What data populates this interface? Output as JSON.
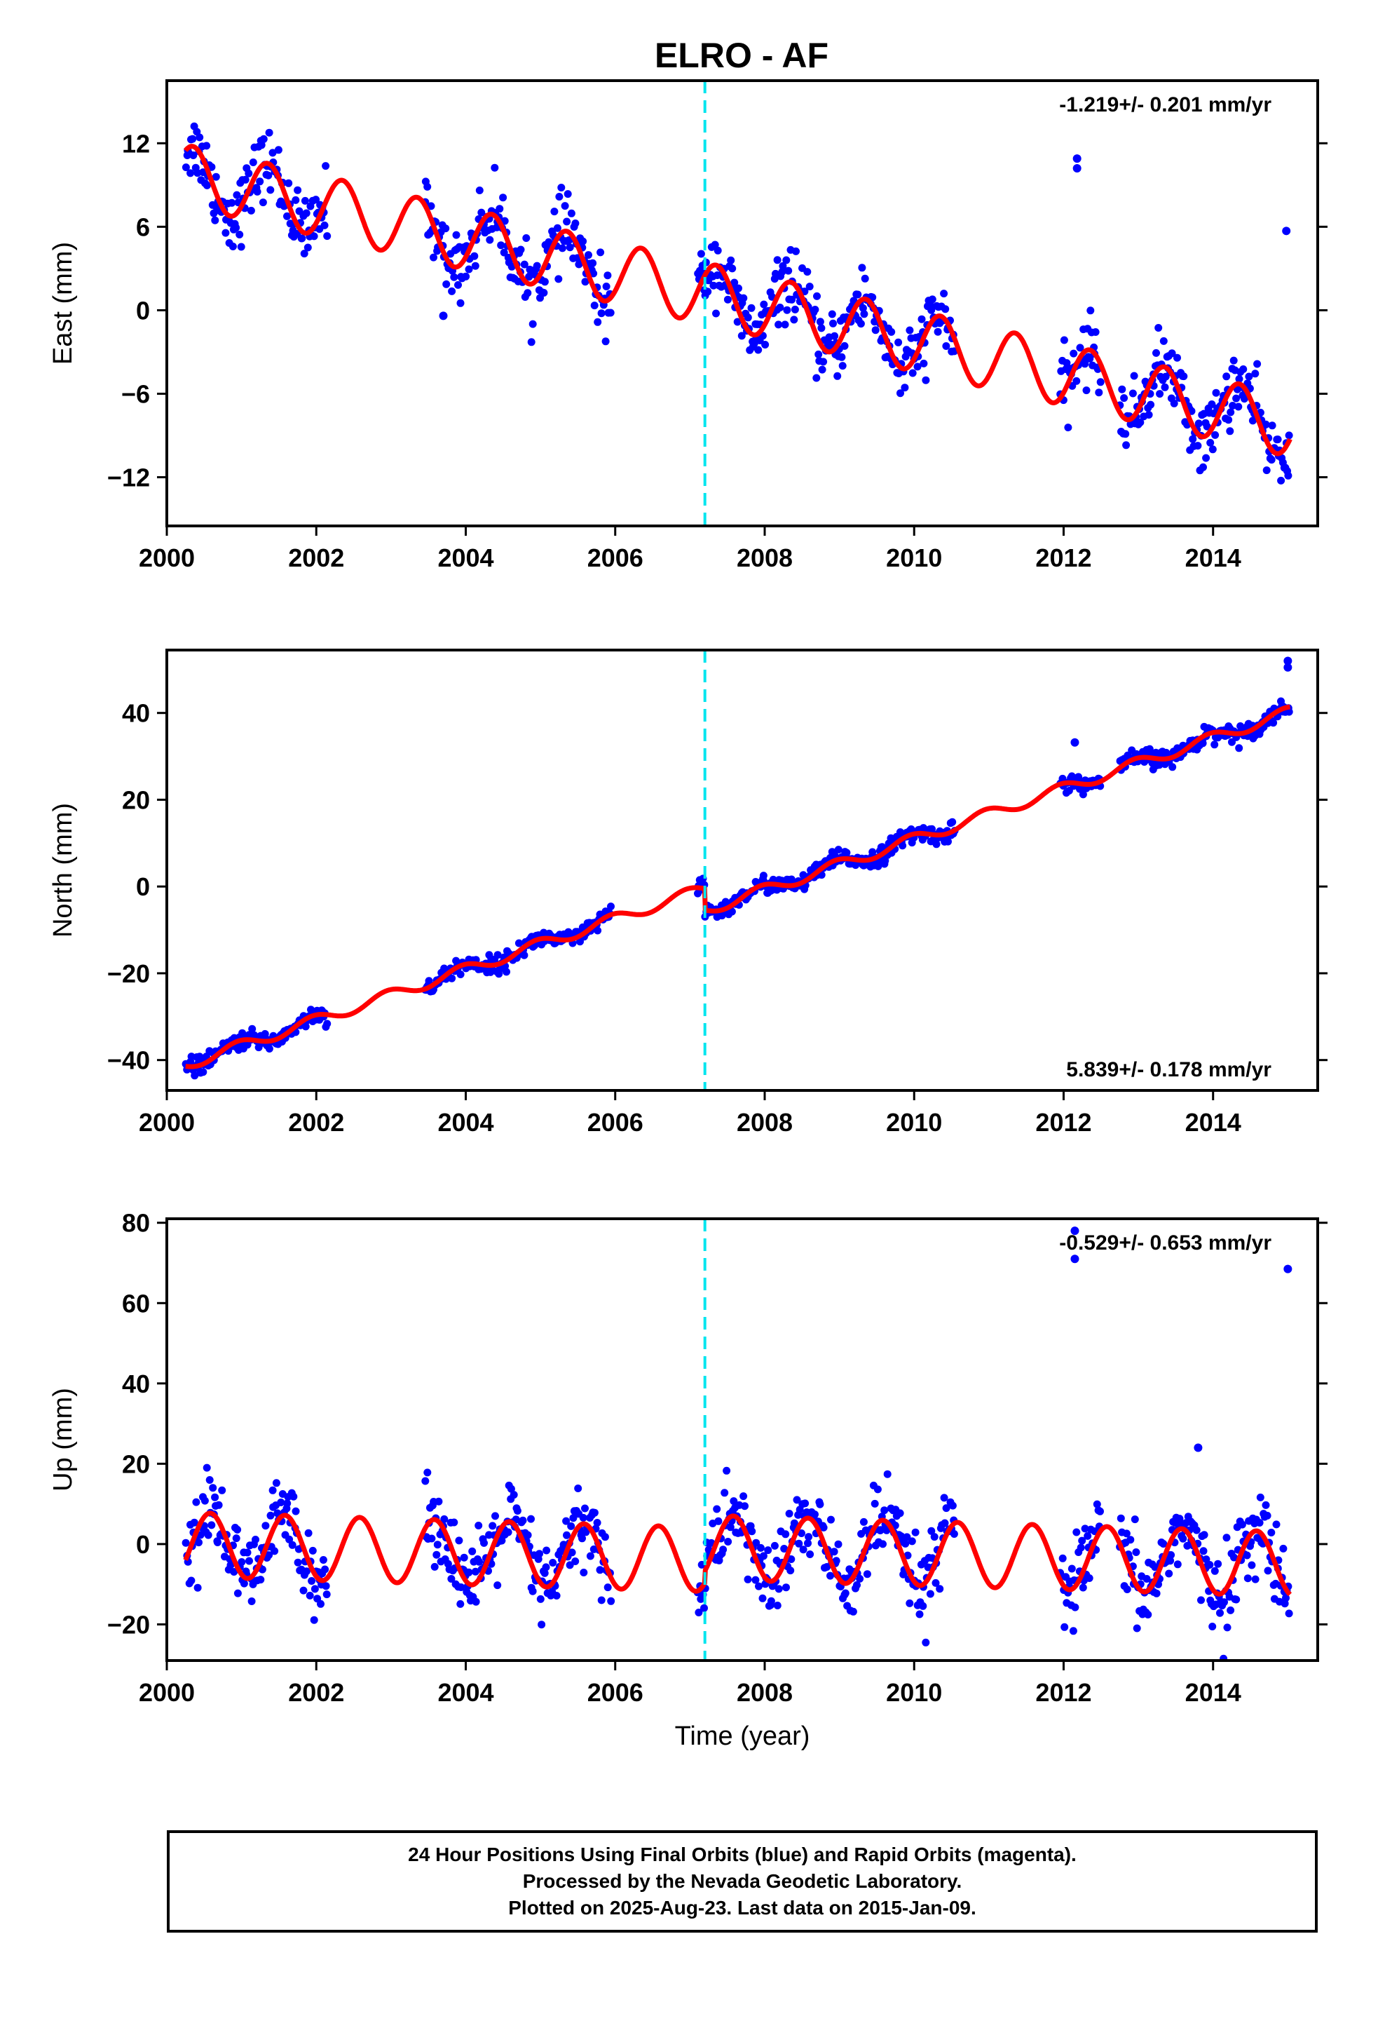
{
  "title": "ELRO - AF",
  "colors": {
    "final_orbits": "#0000ff",
    "model": "#ff0000",
    "event_line": "#00e5ee",
    "axes": "#000000"
  },
  "footer": {
    "line1": "24 Hour Positions Using Final Orbits (blue) and Rapid Orbits (magenta).",
    "line2": "Processed by the Nevada Geodetic Laboratory.",
    "line3": "Plotted on 2025-Aug-23. Last data on 2015-Jan-09."
  },
  "chart_data": [
    {
      "type": "scatter",
      "ylabel": "East (mm)",
      "xlabel": "",
      "rate_label": "-1.219+/- 0.201 mm/yr",
      "rate_position": "top-right",
      "xlim": [
        2000.0,
        2015.4
      ],
      "ylim": [
        -15.5,
        16.5
      ],
      "xticks": [
        "2000",
        "2002",
        "2004",
        "2006",
        "2008",
        "2010",
        "2012",
        "2014"
      ],
      "yticks": [
        "12",
        "6",
        "0",
        "-6",
        "-12"
      ],
      "event_line_x": 2007.2,
      "data_segments": [
        [
          2000.25,
          2002.15
        ],
        [
          2003.45,
          2005.95
        ],
        [
          2007.1,
          2010.55
        ],
        [
          2011.95,
          2012.5
        ],
        [
          2012.75,
          2015.03
        ]
      ],
      "model": {
        "offset_at_2000": 10.0,
        "rate": -1.219,
        "annual_amplitude": 2.2,
        "annual_peak_phase": 0.35,
        "step_at_event": 0.0
      },
      "scatter_sd": 1.2,
      "outliers": [
        [
          2012.18,
          10.9
        ],
        [
          2012.18,
          10.2
        ],
        [
          2014.98,
          5.7
        ],
        [
          2003.7,
          -0.4
        ]
      ]
    },
    {
      "type": "scatter",
      "ylabel": "North (mm)",
      "xlabel": "",
      "rate_label": "5.839+/- 0.178 mm/yr",
      "rate_position": "bottom-right",
      "xlim": [
        2000.0,
        2015.4
      ],
      "ylim": [
        -47.0,
        54.5
      ],
      "xticks": [
        "2000",
        "2002",
        "2004",
        "2006",
        "2008",
        "2010",
        "2012",
        "2014"
      ],
      "yticks": [
        "40",
        "20",
        "0",
        "-20",
        "-40"
      ],
      "event_line_x": 2007.2,
      "data_segments": [
        [
          2000.25,
          2002.15
        ],
        [
          2003.45,
          2005.95
        ],
        [
          2007.1,
          2010.55
        ],
        [
          2011.95,
          2012.5
        ],
        [
          2012.75,
          2015.03
        ]
      ],
      "model": {
        "offset_at_2000": -42.5,
        "rate": 5.839,
        "annual_amplitude": 1.3,
        "annual_peak_phase": 0.95,
        "step_at_event": -5.0
      },
      "scatter_sd": 1.0,
      "outliers": [
        [
          2015.0,
          52.0
        ],
        [
          2015.0,
          50.5
        ],
        [
          2012.15,
          33.2
        ]
      ]
    },
    {
      "type": "scatter",
      "ylabel": "Up (mm)",
      "xlabel": "Time (year)",
      "rate_label": "-0.529+/- 0.653 mm/yr",
      "rate_position": "top-right",
      "xlim": [
        2000.0,
        2015.4
      ],
      "ylim": [
        -29.0,
        81.0
      ],
      "xticks": [
        "2000",
        "2002",
        "2004",
        "2006",
        "2008",
        "2010",
        "2012",
        "2014"
      ],
      "yticks": [
        "80",
        "60",
        "40",
        "20",
        "0",
        "-20"
      ],
      "event_line_x": 2007.2,
      "data_segments": [
        [
          2000.25,
          2002.15
        ],
        [
          2003.45,
          2005.95
        ],
        [
          2007.1,
          2010.55
        ],
        [
          2011.95,
          2012.5
        ],
        [
          2012.75,
          2015.03
        ]
      ],
      "model": {
        "offset_at_2000": 0.0,
        "rate": -0.529,
        "annual_amplitude": 8.0,
        "annual_peak_phase": 0.58,
        "step_at_event": 3.0
      },
      "scatter_sd": 5.0,
      "outliers": [
        [
          2012.15,
          78.0
        ],
        [
          2012.15,
          71.0
        ],
        [
          2015.0,
          68.5
        ],
        [
          2013.8,
          24.0
        ]
      ]
    }
  ]
}
